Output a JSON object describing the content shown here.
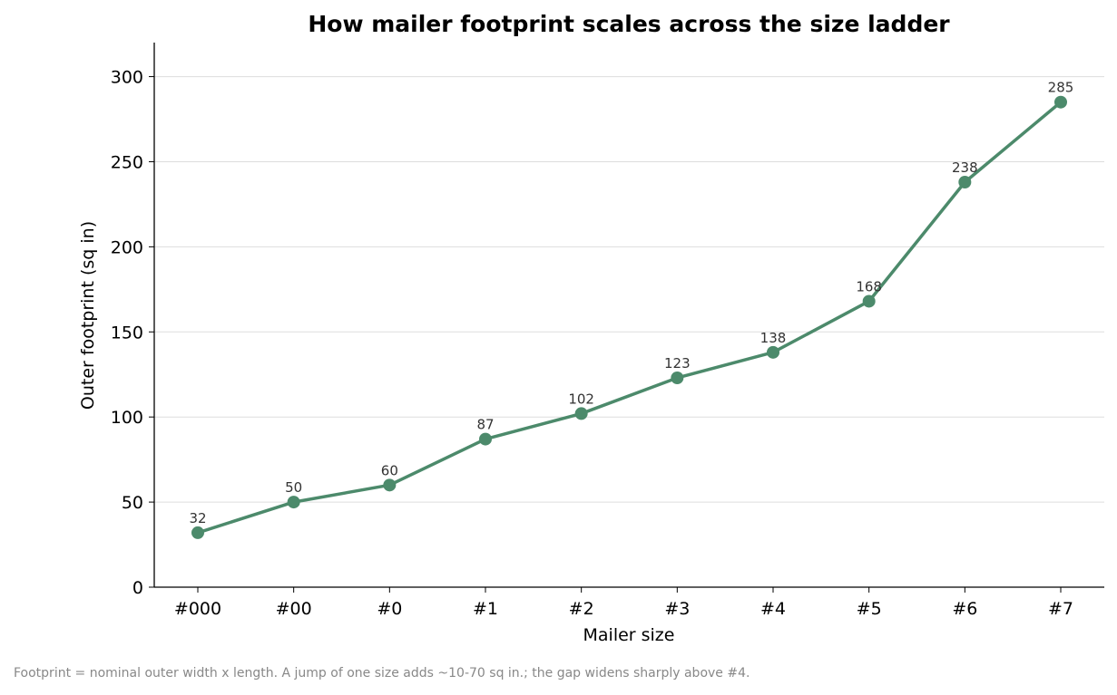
{
  "chart_data": {
    "type": "line",
    "title": "How mailer footprint scales across the size ladder",
    "xlabel": "Mailer size",
    "ylabel": "Outer footprint (sq in)",
    "categories": [
      "#000",
      "#00",
      "#0",
      "#1",
      "#2",
      "#3",
      "#4",
      "#5",
      "#6",
      "#7"
    ],
    "values": [
      32,
      50,
      60,
      87,
      102,
      123,
      138,
      168,
      238,
      285
    ],
    "ylim": [
      0,
      320
    ],
    "yticks": [
      0,
      50,
      100,
      150,
      200,
      250,
      300
    ],
    "grid": "horizontal",
    "data_labels": true,
    "colors": {
      "line": "#4c8a6b",
      "grid": "#dddddd",
      "axis": "#000000"
    }
  },
  "footnote": "Footprint = nominal outer width x length. A jump of one size adds ~10-70 sq in.; the gap widens sharply above #4."
}
